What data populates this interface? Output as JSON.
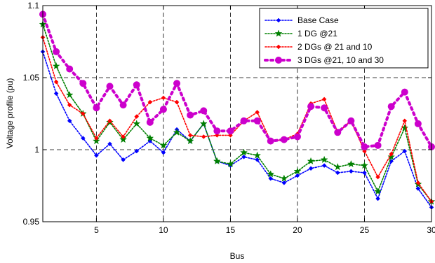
{
  "chart_data": {
    "type": "line",
    "title": "",
    "xlabel": "Bus",
    "ylabel": "Voltage profile (pu)",
    "xlim": [
      1,
      30
    ],
    "ylim": [
      0.95,
      1.1
    ],
    "x_ticks": [
      "5",
      "10",
      "15",
      "20",
      "25",
      "30"
    ],
    "y_ticks": [
      "0.95",
      "1",
      "1.05",
      "1.1"
    ],
    "grid": "dashed",
    "legend_position": "top-right",
    "x": [
      1,
      2,
      3,
      4,
      5,
      6,
      7,
      8,
      9,
      10,
      11,
      12,
      13,
      14,
      15,
      16,
      17,
      18,
      19,
      20,
      21,
      22,
      23,
      24,
      25,
      26,
      27,
      28,
      29,
      30
    ],
    "series": [
      {
        "name": "Base Case",
        "color": "#0000ff",
        "line": "dotted",
        "marker": "diamond",
        "values": [
          1.068,
          1.039,
          1.02,
          1.008,
          0.996,
          1.004,
          0.993,
          0.999,
          1.006,
          0.998,
          1.014,
          1.006,
          1.018,
          0.992,
          0.989,
          0.995,
          0.993,
          0.98,
          0.977,
          0.982,
          0.987,
          0.989,
          0.984,
          0.985,
          0.984,
          0.966,
          0.992,
          0.999,
          0.973,
          0.96
        ]
      },
      {
        "name": "1 DG @21",
        "color": "#008000",
        "line": "dotted",
        "marker": "star",
        "values": [
          1.087,
          1.058,
          1.038,
          1.025,
          1.006,
          1.019,
          1.007,
          1.018,
          1.008,
          1.003,
          1.012,
          1.006,
          1.018,
          0.992,
          0.99,
          0.998,
          0.996,
          0.983,
          0.98,
          0.985,
          0.992,
          0.993,
          0.988,
          0.99,
          0.989,
          0.971,
          0.995,
          1.015,
          0.976,
          0.964
        ]
      },
      {
        "name": "2 DGs @ 21 and 10",
        "color": "#ff0000",
        "line": "dotted",
        "marker": "diamond",
        "values": [
          1.078,
          1.047,
          1.031,
          1.025,
          1.008,
          1.02,
          1.009,
          1.023,
          1.033,
          1.036,
          1.033,
          1.01,
          1.009,
          1.01,
          1.01,
          1.02,
          1.026,
          1.006,
          1.007,
          1.011,
          1.032,
          1.035,
          1.012,
          1.02,
          0.999,
          0.981,
          0.997,
          1.02,
          0.977,
          0.964
        ]
      },
      {
        "name": "3 DGs @21, 10 and 30",
        "color": "#cc00cc",
        "line": "dotted-thick",
        "marker": "circle",
        "values": [
          1.094,
          1.068,
          1.056,
          1.046,
          1.029,
          1.044,
          1.031,
          1.045,
          1.019,
          1.028,
          1.046,
          1.024,
          1.027,
          1.013,
          1.013,
          1.02,
          1.02,
          1.006,
          1.007,
          1.009,
          1.03,
          1.029,
          1.012,
          1.02,
          1.002,
          1.003,
          1.03,
          1.04,
          1.018,
          1.002
        ]
      }
    ]
  }
}
